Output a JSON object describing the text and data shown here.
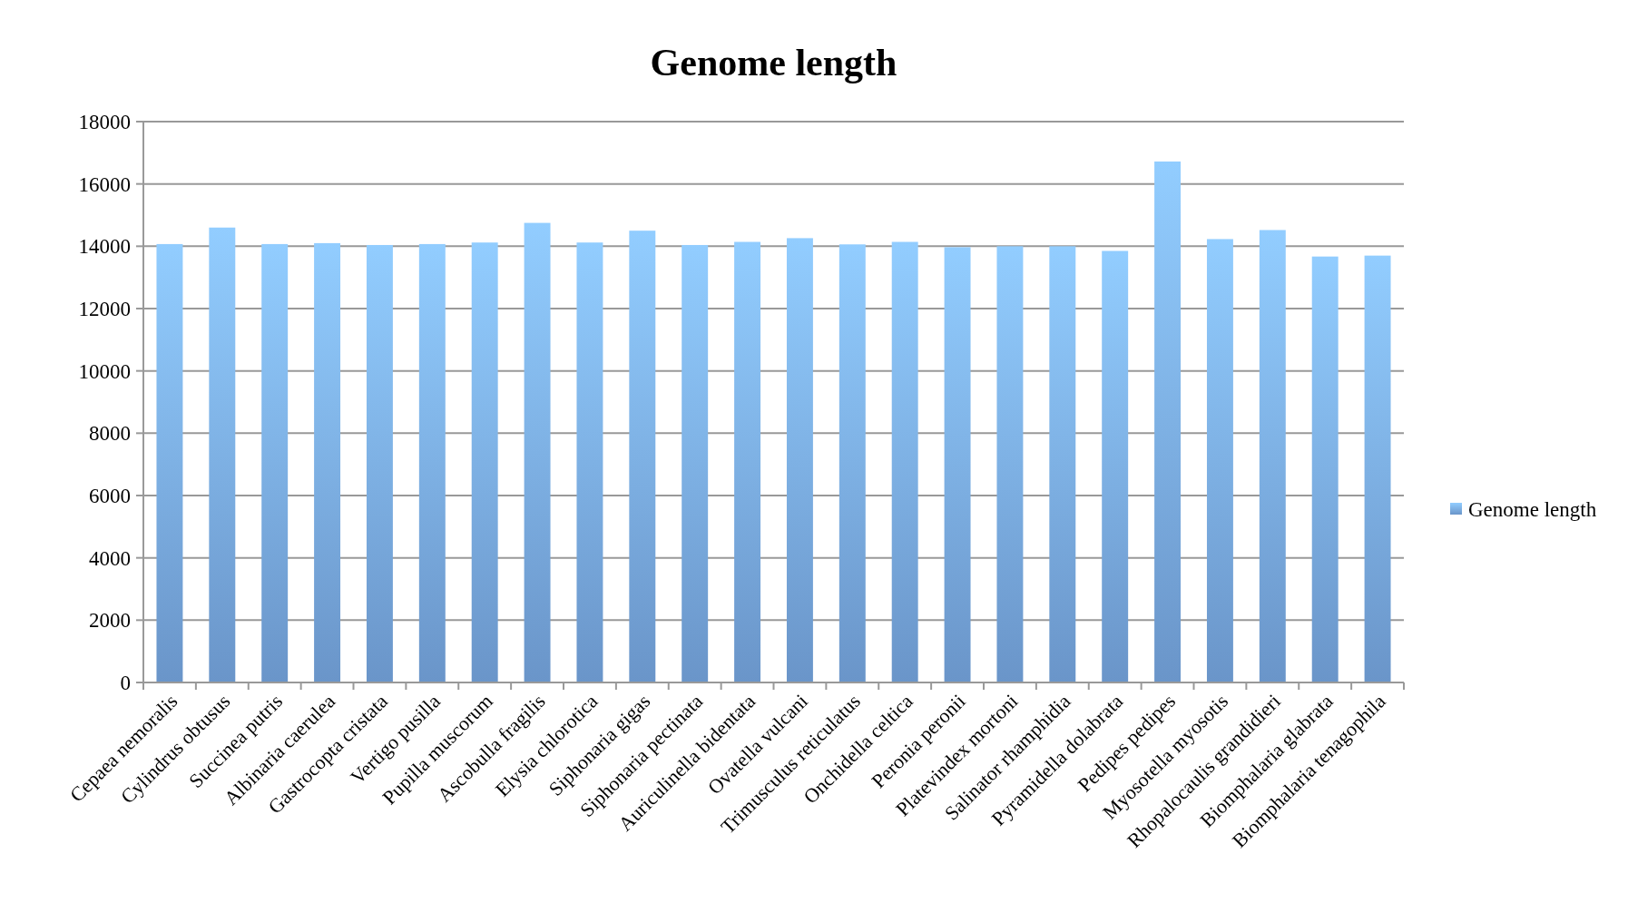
{
  "chart_data": {
    "type": "bar",
    "title": "Genome length",
    "categories": [
      "Cepaea nemoralis",
      "Cylindrus obtusus",
      "Succinea putris",
      "Albinaria caerulea",
      "Gastrocopta cristata",
      "Vertigo pusilla",
      "Pupilla muscorum",
      "Ascobulla fragilis",
      "Elysia chlorotica",
      "Siphonaria gigas",
      "Siphonaria pectinata",
      "Auriculinella bidentata",
      "Ovatella vulcani",
      "Trimusculus reticulatus",
      "Onchidella celtica",
      "Peronia peronii",
      "Platevindex mortoni",
      "Salinator rhamphidia",
      "Pyramidella dolabrata",
      "Pedipes pedipes",
      "Myosotella myosotis",
      "Rhopalocaulis grandidieri",
      "Biomphalaria glabrata",
      "Biomphalaria tenagophila"
    ],
    "series": [
      {
        "name": "Genome length",
        "color": "#7fb2f0",
        "values": [
          14070,
          14600,
          14070,
          14100,
          14040,
          14070,
          14120,
          14750,
          14120,
          14500,
          14040,
          14140,
          14260,
          14060,
          14140,
          13970,
          14000,
          14000,
          13850,
          16720,
          14230,
          14520,
          13670,
          13700
        ]
      }
    ],
    "ylim": [
      0,
      18000
    ],
    "yticks": [
      0,
      2000,
      4000,
      6000,
      8000,
      10000,
      12000,
      14000,
      16000,
      18000
    ],
    "grid": "y",
    "legend": "right"
  }
}
